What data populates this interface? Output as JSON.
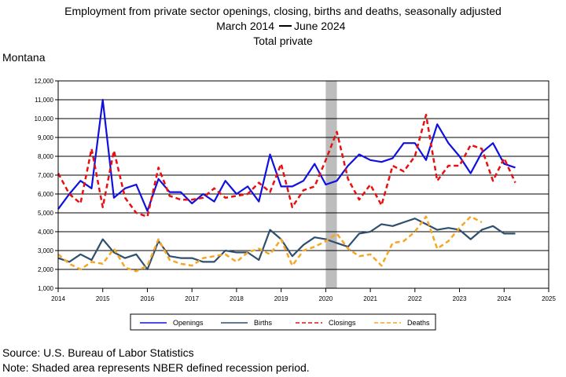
{
  "header": {
    "title_line1": "Employment from private sector openings, closing, births and deaths, seasonally adjusted",
    "title_line2_left": "March 2014",
    "title_line2_right": "June 2024",
    "title_line3": "Total private",
    "region": "Montana"
  },
  "footer": {
    "source": "Source: U.S. Bureau of Labor Statistics",
    "note": "Note: Shaded area represents NBER defined recession period."
  },
  "colors": {
    "openings": "#1010e0",
    "births": "#2f4f6f",
    "closings": "#e81010",
    "deaths": "#f5a623",
    "recession": "#bdbdbd"
  },
  "chart_data": {
    "type": "line",
    "title": "Employment from private sector openings, closing, births and deaths, seasonally adjusted",
    "xlim": [
      2014,
      2025
    ],
    "ylim": [
      1000,
      12000
    ],
    "x_ticks": [
      "2014",
      "2015",
      "2016",
      "2017",
      "2018",
      "2019",
      "2020",
      "2021",
      "2022",
      "2023",
      "2024",
      "2025"
    ],
    "y_ticks": [
      "1,000",
      "2,000",
      "3,000",
      "4,000",
      "5,000",
      "6,000",
      "7,000",
      "8,000",
      "9,000",
      "10,000",
      "11,000",
      "12,000"
    ],
    "grid": "horizontal",
    "legend_position": "bottom",
    "recession": [
      2020.0,
      2020.25
    ],
    "x": [
      2014.0,
      2014.25,
      2014.5,
      2014.75,
      2015.0,
      2015.25,
      2015.5,
      2015.75,
      2016.0,
      2016.25,
      2016.5,
      2016.75,
      2017.0,
      2017.25,
      2017.5,
      2017.75,
      2018.0,
      2018.25,
      2018.5,
      2018.75,
      2019.0,
      2019.25,
      2019.5,
      2019.75,
      2020.0,
      2020.25,
      2020.5,
      2020.75,
      2021.0,
      2021.25,
      2021.5,
      2021.75,
      2022.0,
      2022.25,
      2022.5,
      2022.75,
      2023.0,
      2023.25,
      2023.5,
      2023.75,
      2024.0,
      2024.25
    ],
    "series": [
      {
        "name": "Openings",
        "key": "openings",
        "values": [
          5200,
          6000,
          6700,
          6300,
          11000,
          5800,
          6300,
          6500,
          5100,
          6800,
          6100,
          6100,
          5500,
          6000,
          5600,
          6700,
          6000,
          6400,
          5600,
          8100,
          6400,
          6400,
          6700,
          7600,
          6500,
          6700,
          7500,
          8100,
          7800,
          7700,
          7900,
          8700,
          8700,
          7800,
          9700,
          8700,
          8000,
          7100,
          8200,
          8700,
          7600,
          7400
        ]
      },
      {
        "name": "Births",
        "key": "births",
        "values": [
          2600,
          2400,
          2800,
          2500,
          3600,
          2900,
          2600,
          2800,
          2000,
          3500,
          2700,
          2600,
          2600,
          2400,
          2400,
          3000,
          2900,
          2900,
          2500,
          4100,
          3600,
          2700,
          3300,
          3700,
          3600,
          3400,
          3200,
          3900,
          4000,
          4400,
          4300,
          4500,
          4700,
          4400,
          4100,
          4200,
          4100,
          3600,
          4100,
          4300,
          3900,
          3900
        ]
      },
      {
        "name": "Closings",
        "key": "closings",
        "values": [
          7100,
          6000,
          5500,
          8400,
          5300,
          8300,
          5800,
          5000,
          4800,
          7400,
          5900,
          5700,
          5700,
          5800,
          6300,
          5800,
          5900,
          6000,
          6600,
          6100,
          7600,
          5300,
          6200,
          6400,
          7800,
          9300,
          6800,
          5700,
          6500,
          5400,
          7500,
          7200,
          8000,
          10200,
          6700,
          7500,
          7500,
          8600,
          8400,
          6700,
          7900,
          6600
        ]
      },
      {
        "name": "Deaths",
        "key": "deaths",
        "values": [
          2800,
          2300,
          2000,
          2400,
          2300,
          3100,
          2100,
          1900,
          2200,
          3600,
          2500,
          2300,
          2200,
          2600,
          2700,
          2800,
          2400,
          2900,
          3100,
          2800,
          3600,
          2200,
          3000,
          3200,
          3500,
          3900,
          3100,
          2700,
          2800,
          2200,
          3400,
          3500,
          4000,
          4800,
          3100,
          3500,
          4200,
          4800,
          4500,
          null,
          null,
          null
        ]
      }
    ]
  }
}
